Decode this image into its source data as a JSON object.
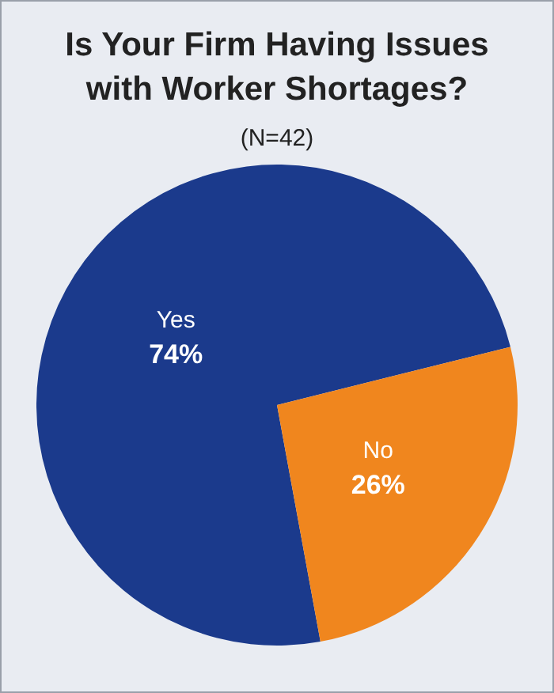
{
  "chart_data": {
    "type": "pie",
    "title": "Is Your Firm Having Issues with Worker Shortages?",
    "subtitle": "(N=42)",
    "categories": [
      "Yes",
      "No"
    ],
    "values": [
      74,
      26
    ],
    "colors": [
      "#1b3a8c",
      "#f0861e"
    ],
    "value_labels": [
      "74%",
      "26%"
    ],
    "legend": false
  }
}
